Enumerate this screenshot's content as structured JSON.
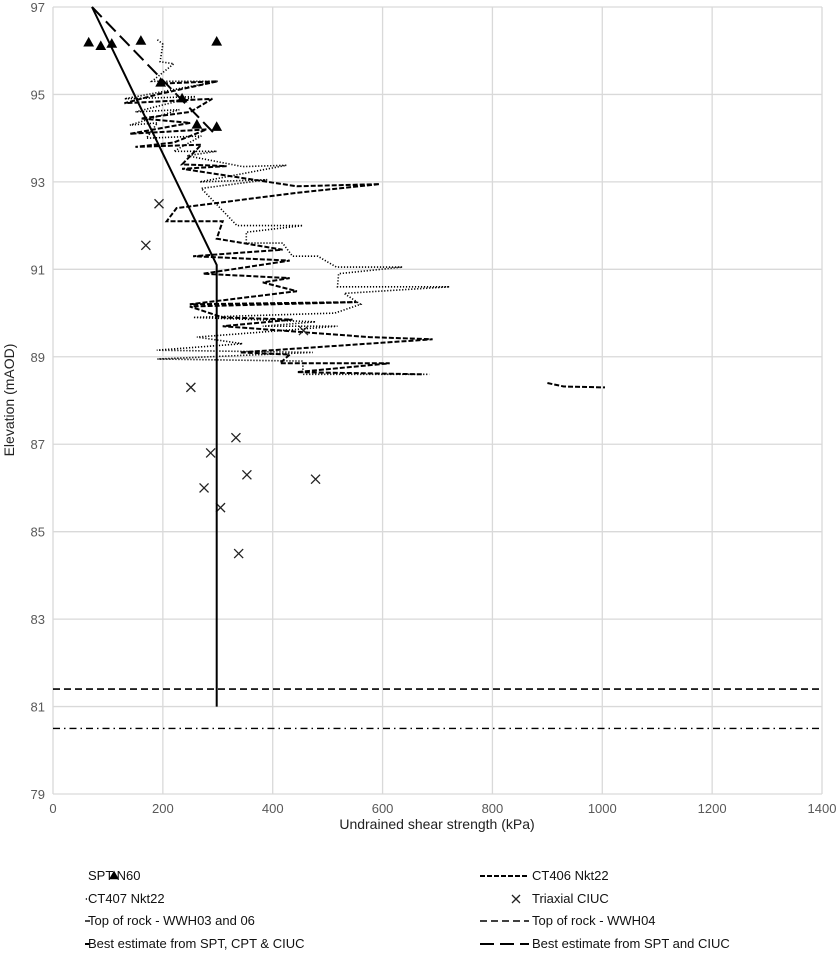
{
  "chart_data": {
    "type": "scatter",
    "title": "",
    "xlabel": "Undrained shear strength (kPa)",
    "ylabel": "Elevation (mAOD)",
    "xlim": [
      0,
      1400
    ],
    "ylim": [
      79,
      97
    ],
    "xticks": [
      0,
      200,
      400,
      600,
      800,
      1000,
      1200,
      1400
    ],
    "yticks": [
      79,
      81,
      83,
      85,
      87,
      89,
      91,
      93,
      95,
      97
    ],
    "grid": true,
    "legend_position": "bottom",
    "series": [
      {
        "name": "SPT N60",
        "kind": "marker-triangle",
        "points": [
          [
            65,
            96.18
          ],
          [
            87,
            96.1
          ],
          [
            107,
            96.15
          ],
          [
            160,
            96.22
          ],
          [
            298,
            96.2
          ],
          [
            196,
            95.26
          ],
          [
            235,
            94.9
          ],
          [
            262,
            94.3
          ],
          [
            298,
            94.25
          ]
        ]
      },
      {
        "name": "CT406 Nkt22",
        "kind": "line-dashed",
        "segments": [
          [
            [
              200,
              95.25
            ],
            [
              300,
              95.3
            ],
            [
              190,
              95.0
            ],
            [
              130,
              94.8
            ],
            [
              290,
              94.9
            ],
            [
              250,
              94.6
            ],
            [
              160,
              94.45
            ],
            [
              250,
              94.35
            ],
            [
              140,
              94.1
            ],
            [
              280,
              94.2
            ],
            [
              220,
              93.9
            ],
            [
              150,
              93.8
            ],
            [
              270,
              93.85
            ],
            [
              235,
              93.4
            ],
            [
              316,
              93.36
            ],
            [
              235,
              93.3
            ],
            [
              444,
              92.9
            ],
            [
              595,
              92.95
            ],
            [
              444,
              92.75
            ],
            [
              225,
              92.4
            ],
            [
              207,
              92.1
            ],
            [
              309,
              92.1
            ],
            [
              298,
              91.7
            ],
            [
              418,
              91.45
            ],
            [
              255,
              91.3
            ],
            [
              431,
              91.2
            ],
            [
              273,
              90.9
            ],
            [
              431,
              90.8
            ],
            [
              382,
              90.7
            ],
            [
              444,
              90.5
            ],
            [
              249,
              90.2
            ],
            [
              553,
              90.25
            ],
            [
              249,
              90.15
            ],
            [
              309,
              89.9
            ],
            [
              436,
              89.85
            ],
            [
              309,
              89.7
            ],
            [
              576,
              89.45
            ],
            [
              691,
              89.4
            ],
            [
              340,
              89.1
            ],
            [
              431,
              89.05
            ],
            [
              413,
              88.85
            ],
            [
              613,
              88.85
            ],
            [
              444,
              88.65
            ],
            [
              673,
              88.6
            ]
          ],
          [
            [
              900,
              88.4
            ],
            [
              930,
              88.32
            ],
            [
              1005,
              88.3
            ]
          ]
        ]
      },
      {
        "name": "CT407 Nkt22",
        "kind": "line-dotted",
        "segments": [
          [
            [
              190,
              96.25
            ],
            [
              200,
              96.15
            ],
            [
              195,
              95.75
            ],
            [
              220,
              95.7
            ],
            [
              180,
              95.3
            ],
            [
              300,
              95.3
            ],
            [
              130,
              94.9
            ],
            [
              260,
              94.95
            ],
            [
              150,
              94.6
            ],
            [
              230,
              94.65
            ],
            [
              140,
              94.3
            ],
            [
              190,
              94.35
            ],
            [
              170,
              94.0
            ],
            [
              270,
              94.05
            ],
            [
              220,
              93.7
            ],
            [
              298,
              93.7
            ],
            [
              244,
              93.6
            ],
            [
              345,
              93.35
            ],
            [
              425,
              93.38
            ],
            [
              267,
              93.0
            ],
            [
              390,
              93.05
            ],
            [
              270,
              92.85
            ],
            [
              335,
              92.0
            ],
            [
              455,
              92.0
            ],
            [
              352,
              91.85
            ],
            [
              352,
              91.6
            ],
            [
              418,
              91.6
            ],
            [
              436,
              91.3
            ],
            [
              482,
              91.3
            ],
            [
              516,
              91.05
            ],
            [
              636,
              91.05
            ],
            [
              520,
              90.9
            ],
            [
              518,
              90.6
            ],
            [
              722,
              90.6
            ],
            [
              530,
              90.45
            ],
            [
              560,
              90.2
            ],
            [
              513,
              90.0
            ],
            [
              255,
              89.9
            ],
            [
              478,
              89.8
            ],
            [
              382,
              89.7
            ],
            [
              518,
              89.7
            ],
            [
              262,
              89.45
            ],
            [
              345,
              89.3
            ],
            [
              189,
              89.15
            ],
            [
              473,
              89.1
            ],
            [
              190,
              88.95
            ],
            [
              455,
              88.9
            ],
            [
              455,
              88.6
            ],
            [
              685,
              88.6
            ]
          ]
        ]
      },
      {
        "name": "Triaxial CIUC",
        "kind": "marker-x",
        "points": [
          [
            193,
            92.5
          ],
          [
            169,
            91.55
          ],
          [
            456,
            89.6
          ],
          [
            251,
            88.3
          ],
          [
            333,
            87.15
          ],
          [
            287,
            86.8
          ],
          [
            353,
            86.3
          ],
          [
            275,
            86.0
          ],
          [
            478,
            86.2
          ],
          [
            305,
            85.55
          ],
          [
            338,
            84.5
          ]
        ]
      },
      {
        "name": "Top of rock - WWH03 and 06",
        "kind": "line-dashdot",
        "points": [
          [
            0,
            80.5
          ],
          [
            1400,
            80.5
          ]
        ]
      },
      {
        "name": "Top of rock - WWH04",
        "kind": "line-dashed-long",
        "points": [
          [
            0,
            81.4
          ],
          [
            1400,
            81.4
          ]
        ]
      },
      {
        "name": "Best estimate from SPT, CPT & CIUC",
        "kind": "line-solid",
        "points": [
          [
            71,
            97
          ],
          [
            298,
            91.1
          ],
          [
            298,
            81.0
          ]
        ]
      },
      {
        "name": "Best estimate from SPT and CIUC",
        "kind": "line-longdash",
        "points": [
          [
            71,
            97
          ],
          [
            298,
            94.05
          ]
        ]
      }
    ]
  }
}
